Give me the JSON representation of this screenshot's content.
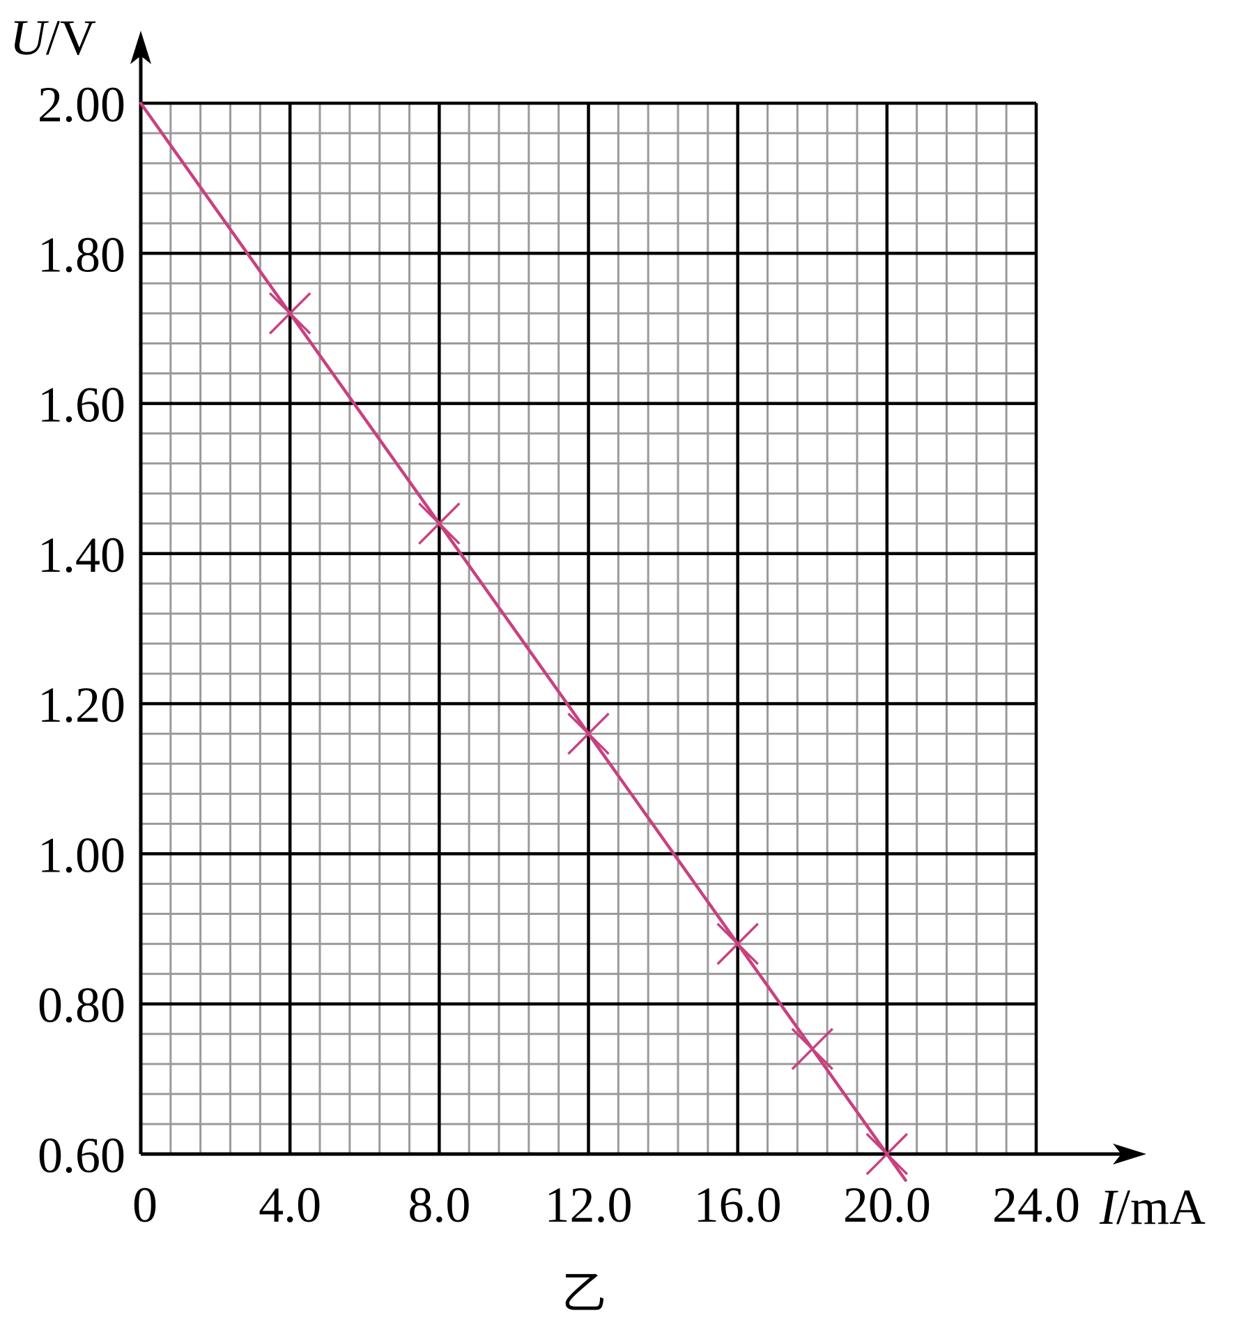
{
  "chart_data": {
    "type": "scatter",
    "xlabel": {
      "symbol": "I",
      "unit": "/mA"
    },
    "ylabel": {
      "symbol": "U",
      "unit": "/V"
    },
    "xlim": [
      0,
      24.0
    ],
    "ylim": [
      0.6,
      2.0
    ],
    "x_ticks": [
      "0",
      "4.0",
      "8.0",
      "12.0",
      "16.0",
      "20.0",
      "24.0"
    ],
    "y_ticks": [
      "0.60",
      "0.80",
      "1.00",
      "1.20",
      "1.40",
      "1.60",
      "1.80",
      "2.00"
    ],
    "x_tick_values": [
      0,
      4,
      8,
      12,
      16,
      20,
      24
    ],
    "y_tick_values": [
      0.6,
      0.8,
      1.0,
      1.2,
      1.4,
      1.6,
      1.8,
      2.0
    ],
    "grid": true,
    "points": [
      {
        "x": 4.0,
        "y": 1.72
      },
      {
        "x": 8.0,
        "y": 1.44
      },
      {
        "x": 12.0,
        "y": 1.16
      },
      {
        "x": 16.0,
        "y": 0.88
      },
      {
        "x": 18.0,
        "y": 0.74
      },
      {
        "x": 20.0,
        "y": 0.6
      }
    ],
    "fit_line": {
      "x": [
        0,
        20.5
      ],
      "y": [
        2.0,
        0.565
      ]
    },
    "caption": "乙",
    "colors": {
      "series": "#c8417f",
      "major_grid": "#000000",
      "minor_grid": "#9a9a9a"
    }
  }
}
